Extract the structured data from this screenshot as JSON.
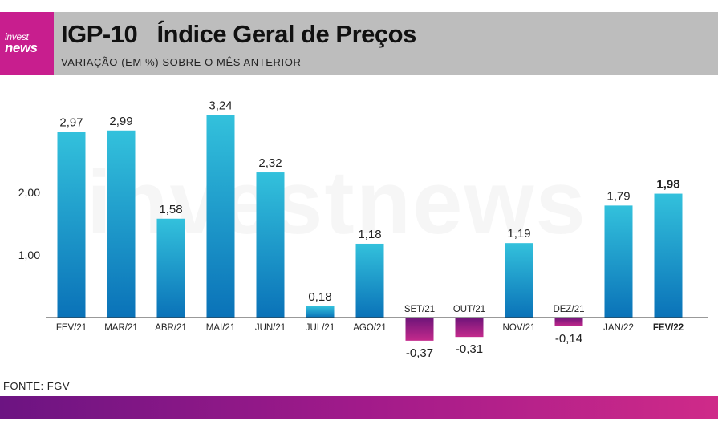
{
  "header": {
    "logo_line1": "invest",
    "logo_line2": "news",
    "title": "IGP-10   Índice Geral de Preços",
    "subtitle": "VARIAÇÃO (EM %) SOBRE O MÊS ANTERIOR"
  },
  "watermark": "investnews",
  "source": "FONTE: FGV",
  "colors": {
    "positive_top": "#33c1dc",
    "positive_bottom": "#0a72b8",
    "negative_top": "#6e1479",
    "negative_bottom": "#c42a8c",
    "header_bg": "#bdbdbd",
    "brand": "#c81e8e"
  },
  "chart_data": {
    "type": "bar",
    "categories": [
      "FEV/21",
      "MAR/21",
      "ABR/21",
      "MAI/21",
      "JUN/21",
      "JUL/21",
      "AGO/21",
      "SET/21",
      "OUT/21",
      "NOV/21",
      "DEZ/21",
      "JAN/22",
      "FEV/22"
    ],
    "values": [
      2.97,
      2.99,
      1.58,
      3.24,
      2.32,
      0.18,
      1.18,
      -0.37,
      -0.31,
      1.19,
      -0.14,
      1.79,
      1.98
    ],
    "value_labels": [
      "2,97",
      "2,99",
      "1,58",
      "3,24",
      "2,32",
      "0,18",
      "1,18",
      "-0,37",
      "-0,31",
      "1,19",
      "-0,14",
      "1,79",
      "1,98"
    ],
    "highlight_index": 12,
    "yticks": [
      1.0,
      2.0
    ],
    "ytick_labels": [
      "1,00",
      "2,00"
    ],
    "ylim": [
      -0.6,
      3.5
    ],
    "title": "",
    "xlabel": "",
    "ylabel": "",
    "grid": false,
    "legend": "none"
  }
}
